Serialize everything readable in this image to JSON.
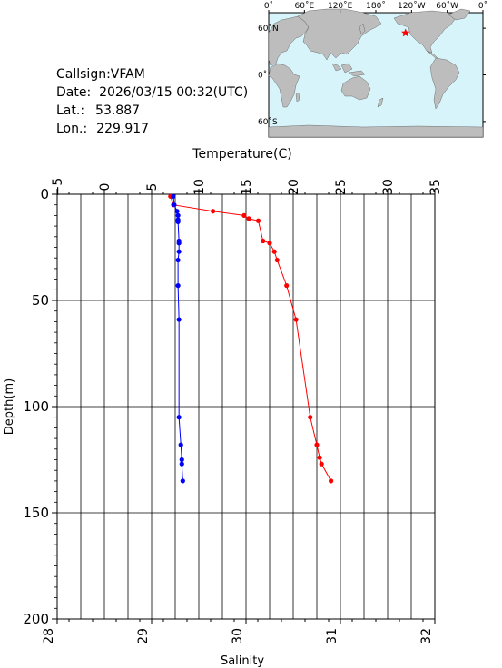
{
  "info": {
    "callsign": "Callsign:VFAM",
    "date": "Date:  2026/03/15 00:32(UTC)",
    "lat_label": "Lat.:",
    "lat_value": "53.887",
    "lon_label": "Lon.:",
    "lon_value": "229.917"
  },
  "map": {
    "top_labels": [
      "0˚",
      "60˚E",
      "120˚E",
      "180˚",
      "120˚W",
      "60˚W",
      "0˚"
    ],
    "right_labels": [
      "60˚N",
      "0˚",
      "60˚S"
    ],
    "marker": {
      "lat": 53.887,
      "lon": 229.917
    },
    "colors": {
      "ocean": "#d8f4fb",
      "land": "#bdbdbd",
      "marker": "#ff0000"
    }
  },
  "chart_data": {
    "type": "line",
    "title": "",
    "x_top_label": "Temperature(C)",
    "x_bottom_label": "Salinity",
    "ylabel": "Depth(m)",
    "temperature_ticks": [
      "−5",
      "0",
      "5",
      "10",
      "15",
      "20",
      "25",
      "30",
      "35"
    ],
    "salinity_ticks": [
      "28",
      "29",
      "30",
      "31",
      "32"
    ],
    "depth_ticks": [
      "0",
      "50",
      "100",
      "150",
      "200"
    ],
    "temperature_range": [
      -5,
      35
    ],
    "salinity_range": [
      28,
      32
    ],
    "depth_range": [
      0,
      200
    ],
    "grid": true,
    "series": [
      {
        "axis": "temperature",
        "color": "#ff0000",
        "points": [
          [
            7.0,
            1
          ],
          [
            7.3,
            5
          ],
          [
            11.5,
            8
          ],
          [
            14.8,
            10
          ],
          [
            15.3,
            11.5
          ],
          [
            16.3,
            12.5
          ],
          [
            16.8,
            22
          ],
          [
            17.5,
            23
          ],
          [
            18.0,
            27
          ],
          [
            18.3,
            31
          ],
          [
            19.3,
            43
          ],
          [
            20.3,
            59
          ],
          [
            21.8,
            105
          ],
          [
            22.5,
            118
          ],
          [
            22.8,
            124
          ],
          [
            23.0,
            127
          ],
          [
            24.0,
            135
          ]
        ]
      },
      {
        "axis": "salinity",
        "color": "#0000ff",
        "points": [
          [
            29.23,
            1
          ],
          [
            29.24,
            5
          ],
          [
            29.27,
            8
          ],
          [
            29.28,
            10
          ],
          [
            29.28,
            12
          ],
          [
            29.28,
            13
          ],
          [
            29.29,
            22
          ],
          [
            29.29,
            23
          ],
          [
            29.29,
            27
          ],
          [
            29.28,
            31
          ],
          [
            29.28,
            43
          ],
          [
            29.29,
            59
          ],
          [
            29.29,
            105
          ],
          [
            29.31,
            118
          ],
          [
            29.32,
            125
          ],
          [
            29.32,
            127
          ],
          [
            29.33,
            135
          ]
        ]
      }
    ]
  }
}
